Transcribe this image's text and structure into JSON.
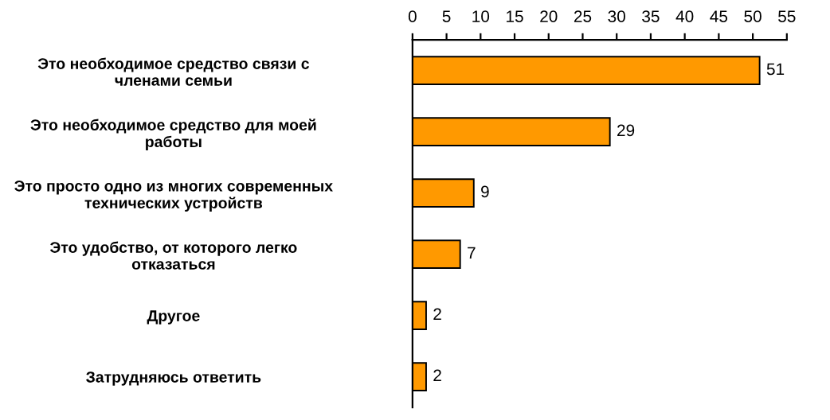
{
  "chart_data": {
    "type": "bar",
    "orientation": "horizontal",
    "categories": [
      "Это необходимое средство связи с\nчленами семьи",
      "Это необходимое средство для моей\nработы",
      "Это просто одно из многих современных\nтехнических устройств",
      "Это удобство, от которого легко\nотказаться",
      "Другое",
      "Затрудняюсь ответить"
    ],
    "values": [
      51,
      29,
      9,
      7,
      2,
      2
    ],
    "color": "#ff9900",
    "xlim": [
      0,
      55
    ],
    "xticks": [
      0,
      5,
      10,
      15,
      20,
      25,
      30,
      35,
      40,
      45,
      50,
      55
    ],
    "data_labels": true,
    "grid": false,
    "legend": false
  }
}
